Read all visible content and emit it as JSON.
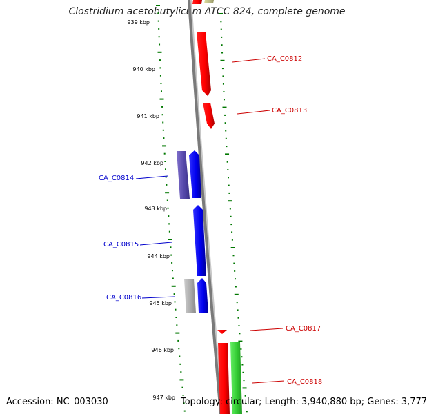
{
  "title": "Clostridium acetobutylicum ATCC 824, complete genome",
  "footer": {
    "accession": "Accession: NC_003030",
    "summary": "Topology: circular; Length: 3,940,880 bp; Genes: 3,777"
  },
  "colors": {
    "forward_gene": "#ff0000",
    "reverse_gene": "#0000ff",
    "reverse_gene_secondary": "#6655bb",
    "grey_feature": "#aaaaaa",
    "green_feature": "#33cc33",
    "olive_feature": "#bbbb88",
    "backbone": "#808080",
    "ticks": "#007700",
    "forward_label": "#cc0000",
    "reverse_label": "#0000cc"
  },
  "scale_labels": [
    "939 kbp",
    "940 kbp",
    "941 kbp",
    "942 kbp",
    "943 kbp",
    "944 kbp",
    "945 kbp",
    "946 kbp",
    "947 kbp"
  ],
  "gene_labels": [
    {
      "text": "CA_C0812",
      "strand": "forward"
    },
    {
      "text": "CA_C0813",
      "strand": "forward"
    },
    {
      "text": "CA_C0814",
      "strand": "reverse"
    },
    {
      "text": "CA_C0815",
      "strand": "reverse"
    },
    {
      "text": "CA_C0816",
      "strand": "reverse"
    },
    {
      "text": "CA_C0817",
      "strand": "forward"
    },
    {
      "text": "CA_C0818",
      "strand": "forward"
    }
  ]
}
